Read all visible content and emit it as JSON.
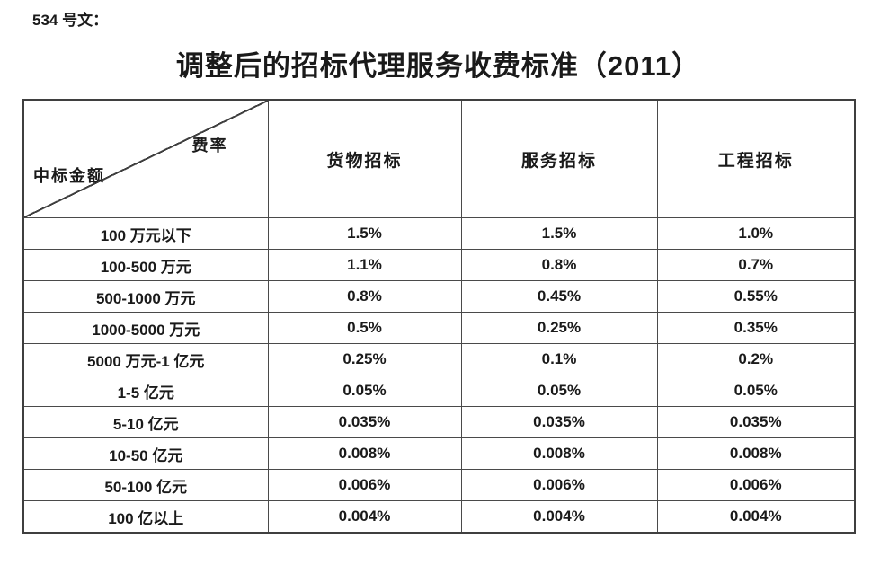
{
  "page": {
    "doc_label": "534 号文：",
    "title": "调整后的招标代理服务收费标准（2011）"
  },
  "table": {
    "corner": {
      "top_right": "费率",
      "bottom_left": "中标金额"
    },
    "columns": [
      "货物招标",
      "服务招标",
      "工程招标"
    ],
    "rows": [
      {
        "label": "100 万元以下",
        "values": [
          "1.5%",
          "1.5%",
          "1.0%"
        ]
      },
      {
        "label": "100-500 万元",
        "values": [
          "1.1%",
          "0.8%",
          "0.7%"
        ]
      },
      {
        "label": "500-1000 万元",
        "values": [
          "0.8%",
          "0.45%",
          "0.55%"
        ]
      },
      {
        "label": "1000-5000 万元",
        "values": [
          "0.5%",
          "0.25%",
          "0.35%"
        ]
      },
      {
        "label": "5000 万元-1 亿元",
        "values": [
          "0.25%",
          "0.1%",
          "0.2%"
        ]
      },
      {
        "label": "1-5 亿元",
        "values": [
          "0.05%",
          "0.05%",
          "0.05%"
        ]
      },
      {
        "label": "5-10 亿元",
        "values": [
          "0.035%",
          "0.035%",
          "0.035%"
        ]
      },
      {
        "label": "10-50 亿元",
        "values": [
          "0.008%",
          "0.008%",
          "0.008%"
        ]
      },
      {
        "label": "50-100 亿元",
        "values": [
          "0.006%",
          "0.006%",
          "0.006%"
        ]
      },
      {
        "label": "100 亿以上",
        "values": [
          "0.004%",
          "0.004%",
          "0.004%"
        ]
      }
    ]
  },
  "colors": {
    "text": "#1a1a1a",
    "border": "#3f3f3f",
    "background": "#ffffff"
  }
}
